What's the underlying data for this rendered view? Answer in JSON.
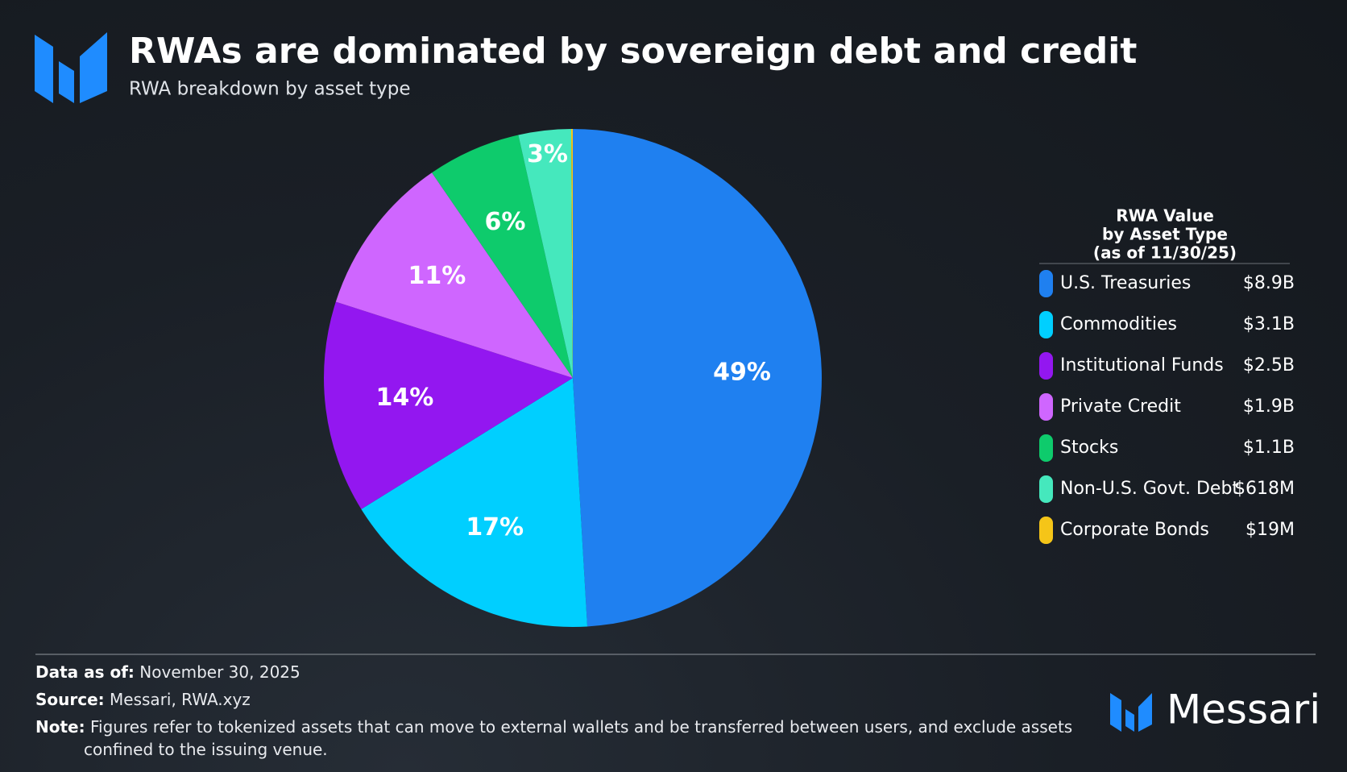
{
  "header": {
    "title": "RWAs are dominated by sovereign debt and credit",
    "subtitle": "RWA breakdown by asset type"
  },
  "chart_data": {
    "type": "pie",
    "legend_title": [
      "RWA Value",
      "by Asset Type",
      "(as of 11/30/25)"
    ],
    "legend": "right",
    "categories": [
      "U.S. Treasuries",
      "Commodities",
      "Institutional Funds",
      "Private Credit",
      "Stocks",
      "Non-U.S. Govt. Debt",
      "Corporate Bonds"
    ],
    "values": [
      8900000000,
      3100000000,
      2500000000,
      1900000000,
      1100000000,
      618000000,
      19000000
    ],
    "value_labels": [
      "$8.9B",
      "$3.1B",
      "$2.5B",
      "$1.9B",
      "$1.1B",
      "$618M",
      "$19M"
    ],
    "percentages": [
      49,
      17,
      14,
      11,
      6,
      3,
      null
    ],
    "percentage_labels": [
      "49%",
      "17%",
      "14%",
      "11%",
      "6%",
      "3%",
      null
    ],
    "colors": [
      "#1f80f0",
      "#00cfff",
      "#9317f0",
      "#cf66ff",
      "#0ecb6c",
      "#45e8bd",
      "#f5c518"
    ]
  },
  "footer": {
    "data_as_of": {
      "label": "Data as of:",
      "value": "November 30, 2025"
    },
    "source": {
      "label": "Source:",
      "value": "Messari, RWA.xyz"
    },
    "note": {
      "label": "Note:",
      "lines": [
        "Figures refer to tokenized assets that can move to external wallets and be transferred between users, and exclude assets",
        "confined to the issuing venue."
      ]
    },
    "brand": "Messari"
  }
}
